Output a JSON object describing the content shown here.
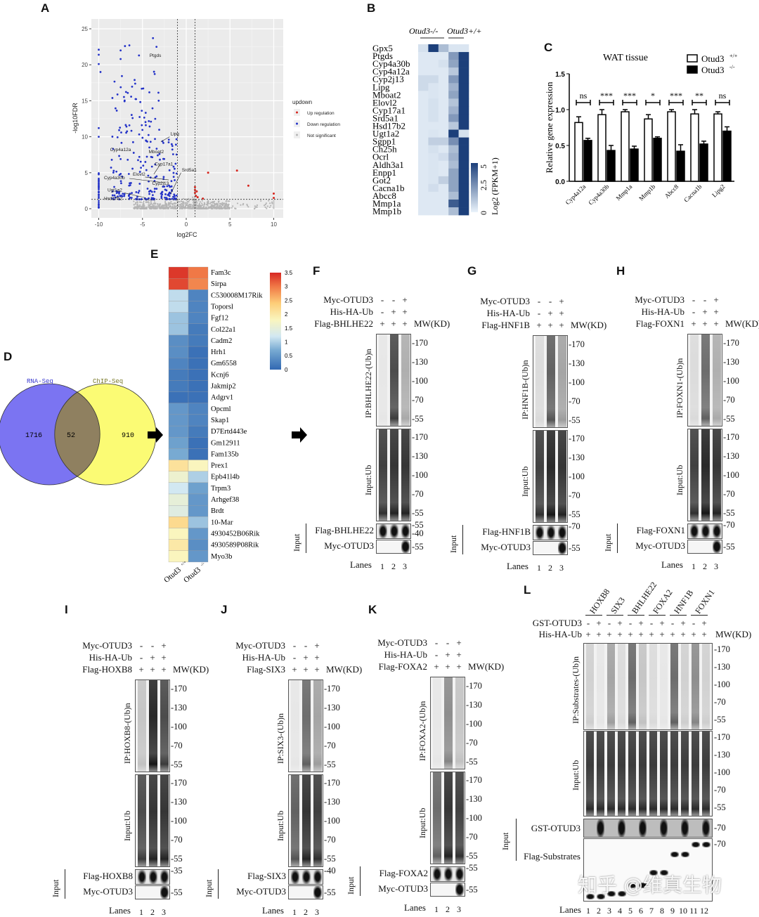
{
  "panels": {
    "A": "A",
    "B": "B",
    "C": "C",
    "D": "D",
    "E": "E",
    "F": "F",
    "G": "G",
    "H": "H",
    "I": "I",
    "J": "J",
    "K": "K",
    "L": "L"
  },
  "chart_data": [
    {
      "id": "A",
      "type": "scatter",
      "xlabel": "log2FC",
      "ylabel": "-log10FDR",
      "xlim": [
        -11,
        11
      ],
      "ylim": [
        -1,
        26
      ],
      "xticks": [
        -10,
        -5,
        0,
        5,
        10
      ],
      "yticks": [
        0,
        5,
        10,
        15,
        20,
        25
      ],
      "grid": true,
      "thresholds": {
        "log2FC": [
          -1,
          1
        ],
        "neg_log10FDR": 1.3
      },
      "legend": {
        "title": "updown",
        "placement": "right",
        "entries": [
          {
            "label": "Up regulation",
            "color": "#d7261e"
          },
          {
            "label": "Down regulation",
            "color": "#2433c8"
          },
          {
            "label": "Not significant",
            "color": "#b5b5b5"
          }
        ]
      },
      "labeled_genes": [
        "Ptgds",
        "Lipg",
        "Cyp4a12a",
        "Mboat2",
        "Cyp17a1",
        "Srd5a1",
        "Elovl2",
        "Cyp4a30b",
        "Cyp2j13",
        "Ugt1a2",
        "Hsd17b2"
      ],
      "up_points": [
        [
          1.0,
          3.0
        ],
        [
          1.0,
          2.6
        ],
        [
          1.0,
          2.2
        ],
        [
          1.1,
          1.8
        ],
        [
          1.2,
          2.4
        ],
        [
          1.3,
          1.6
        ],
        [
          1.9,
          1.4
        ],
        [
          2.5,
          5.0
        ],
        [
          5.8,
          5.3
        ],
        [
          7.1,
          3.2
        ],
        [
          10,
          2.1
        ],
        [
          10,
          1.5
        ]
      ]
    },
    {
      "id": "B",
      "type": "heatmap",
      "column_groups": [
        "Otud3-/-",
        "Otud3+/+"
      ],
      "rows": [
        "Gpx5",
        "Ptgds",
        "Cyp4a30b",
        "Cyp4a12a",
        "Cyp2j13",
        "Lipg",
        "Mboat2",
        "Elovl2",
        "Cyp17a1",
        "Srd5a1",
        "Hsd17b2",
        "Ugt1a2",
        "Sgpp1",
        "Ch25h",
        "Ocrl",
        "Aldh3a1",
        "Enpp1",
        "Got2",
        "Cacna1b",
        "Abcc8",
        "Mmp1a",
        "Mmp1b"
      ],
      "values": [
        [
          0.5,
          5,
          1.5,
          0.4,
          0.4
        ],
        [
          0.3,
          0.3,
          0.3,
          2.5,
          5
        ],
        [
          0.3,
          0.3,
          0.5,
          2.2,
          5
        ],
        [
          0.3,
          0.3,
          0.3,
          1.2,
          5
        ],
        [
          0.7,
          0.7,
          0.3,
          2.5,
          5
        ],
        [
          0.7,
          0.4,
          0.3,
          1.8,
          5
        ],
        [
          0.3,
          0.4,
          0.3,
          2.2,
          5
        ],
        [
          0.3,
          0.5,
          0.3,
          1.3,
          5
        ],
        [
          0.3,
          0.5,
          0.3,
          1.8,
          5
        ],
        [
          0.3,
          0.5,
          0.3,
          2.5,
          5
        ],
        [
          0.3,
          0.3,
          0.3,
          1.2,
          5
        ],
        [
          0.3,
          0.4,
          0.3,
          5,
          0.5
        ],
        [
          0.3,
          1.0,
          1.0,
          2.8,
          5
        ],
        [
          0.3,
          0.5,
          0.3,
          1.5,
          5
        ],
        [
          0.3,
          0.4,
          0.6,
          1.8,
          5
        ],
        [
          0.3,
          0.4,
          0.3,
          1.5,
          5
        ],
        [
          0.3,
          0.4,
          0.3,
          2.2,
          5
        ],
        [
          0.3,
          0.4,
          1.0,
          2.2,
          5
        ],
        [
          0.3,
          0.6,
          0.3,
          2.2,
          5
        ],
        [
          0.3,
          0.3,
          0.3,
          1.5,
          5
        ],
        [
          0.3,
          0.3,
          0.3,
          4.2,
          5
        ],
        [
          0.3,
          0.3,
          0.3,
          1.5,
          5
        ]
      ],
      "colorbar": {
        "label": "Log2 (FPKM+1)",
        "ticks": [
          "0",
          "2.5",
          "5"
        ],
        "range": [
          0,
          5
        ],
        "low_color": "#eaf3fb",
        "high_color": "#1c3f7a"
      }
    },
    {
      "id": "C",
      "type": "bar",
      "title": "WAT tissue",
      "ylabel": "Relative gene expression",
      "ylim": [
        0,
        1.5
      ],
      "yticks": [
        "0.0",
        "0.5",
        "1.0",
        "1.5"
      ],
      "categories": [
        "Cyp4a12a",
        "Cyp4a30b",
        "Mmp1a",
        "Mmp1b",
        "Abcc8",
        "Cacna1b",
        "Lipg2"
      ],
      "series": [
        {
          "name": "Otud3+/+",
          "base": "Otud3",
          "sup": "+/+",
          "color": "#ffffff",
          "values": [
            0.82,
            0.93,
            0.97,
            0.87,
            0.97,
            0.94,
            0.94
          ],
          "errors": [
            0.08,
            0.07,
            0.03,
            0.06,
            0.03,
            0.06,
            0.03
          ]
        },
        {
          "name": "Otud3-/-",
          "base": "Otud3",
          "sup": "-/-",
          "color": "#000000",
          "values": [
            0.57,
            0.43,
            0.45,
            0.6,
            0.42,
            0.52,
            0.7
          ],
          "errors": [
            0.03,
            0.07,
            0.04,
            0.02,
            0.09,
            0.04,
            0.06
          ]
        }
      ],
      "significance": [
        "ns",
        "***",
        "***",
        "*",
        "***",
        "**",
        "ns"
      ],
      "legend_placement": "top-right"
    },
    {
      "id": "D",
      "type": "venn",
      "sets": [
        {
          "name": "RNA-Seq",
          "only": "1716",
          "color": "#7b74f2"
        },
        {
          "name": "ChIP-Seq",
          "only": "910",
          "color": "#fbfb74"
        }
      ],
      "overlap": "52"
    },
    {
      "id": "E",
      "type": "heatmap",
      "columns": [
        {
          "base": "Otud3",
          "sup": "+/+"
        },
        {
          "base": "Otud3",
          "sup": "-/-"
        }
      ],
      "rows": [
        "Fam3c",
        "Sirpa",
        "C530008M17Rik",
        "Toporsl",
        "Fgf12",
        "Col22a1",
        "Cadm2",
        "Hrh1",
        "Gm6558",
        "Kcnj6",
        "Jakmip2",
        "Adgrv1",
        "Opcml",
        "Skap1",
        "D7Ertd443e",
        "Gm12911",
        "Fam135b",
        "Prex1",
        "Epb41l4b",
        "Trpm3",
        "Arhgef38",
        "Brdt",
        "10-Mar",
        "4930452B06Rik",
        "4930589P08Rik",
        "Myo3b"
      ],
      "values": [
        [
          3.4,
          3.0
        ],
        [
          3.3,
          2.9
        ],
        [
          1.1,
          0.3
        ],
        [
          1.1,
          0.3
        ],
        [
          0.9,
          0.3
        ],
        [
          0.9,
          0.2
        ],
        [
          0.4,
          0.2
        ],
        [
          0.4,
          0.1
        ],
        [
          0.3,
          0.1
        ],
        [
          0.2,
          0.1
        ],
        [
          0.2,
          0.1
        ],
        [
          0.1,
          0.1
        ],
        [
          0.5,
          0.3
        ],
        [
          0.5,
          0.3
        ],
        [
          0.5,
          0.2
        ],
        [
          0.6,
          0.1
        ],
        [
          0.7,
          0.1
        ],
        [
          2.1,
          1.8
        ],
        [
          1.6,
          1.0
        ],
        [
          1.2,
          0.6
        ],
        [
          1.5,
          0.5
        ],
        [
          1.4,
          0.5
        ],
        [
          2.2,
          0.9
        ],
        [
          1.8,
          0.5
        ],
        [
          2.0,
          0.4
        ],
        [
          1.8,
          0.5
        ]
      ],
      "colorbar": {
        "ticks": [
          "3.5",
          "3",
          "2.5",
          "2",
          "1.5",
          "1",
          "0.5",
          "0"
        ],
        "range": [
          0,
          3.5
        ]
      }
    }
  ],
  "blots": {
    "F": {
      "rows": [
        {
          "label": "Myc-OTUD3",
          "signs": [
            "-",
            "-",
            "+"
          ]
        },
        {
          "label": "His-HA-Ub",
          "signs": [
            "-",
            "+",
            "+"
          ]
        },
        {
          "label": "Flag-BHLHE22",
          "signs": [
            "+",
            "+",
            "+"
          ]
        }
      ],
      "mw_header": "MW(KD)",
      "ip_label": "IP:BHLHE22-(Ub)n",
      "ip_mw": [
        "-170",
        "-130",
        "-100",
        "-70",
        "-55"
      ],
      "input_label": "Input:Ub",
      "input_mw": [
        "-170",
        "-130",
        "-100",
        "-70",
        "-55"
      ],
      "input_group_label": "Input",
      "input_rows": [
        {
          "label": "Flag-BHLHE22",
          "mw": [
            "-55",
            "-40"
          ]
        },
        {
          "label": "Myc-OTUD3",
          "mw": [
            "-55"
          ]
        }
      ],
      "lanes_label": "Lanes",
      "lanes": [
        "1",
        "2",
        "3"
      ],
      "ip_signal": [
        0.05,
        0.75,
        0.3
      ],
      "input_signal": [
        0.8,
        0.85,
        0.85
      ]
    },
    "G": {
      "rows": [
        {
          "label": "Myc-OTUD3",
          "signs": [
            "-",
            "-",
            "+"
          ]
        },
        {
          "label": "His-HA-Ub",
          "signs": [
            "-",
            "+",
            "+"
          ]
        },
        {
          "label": "Flag-HNF1B",
          "signs": [
            "+",
            "+",
            "+"
          ]
        }
      ],
      "mw_header": "MW(KD)",
      "ip_label": "IP:HNF1B-(Ub)n",
      "ip_mw": [
        "-170",
        "-130",
        "-100",
        "-70",
        "-55"
      ],
      "input_label": "Input:Ub",
      "input_mw": [
        "-170",
        "-130",
        "-100",
        "-70",
        "-55"
      ],
      "input_group_label": "Input",
      "input_rows": [
        {
          "label": "Flag-HNF1B",
          "mw": [
            "-70"
          ]
        },
        {
          "label": "Myc-OTUD3",
          "mw": [
            "-55"
          ]
        }
      ],
      "lanes_label": "Lanes",
      "lanes": [
        "1",
        "2",
        "3"
      ],
      "ip_signal": [
        0.1,
        0.65,
        0.35
      ],
      "input_signal": [
        0.8,
        0.9,
        0.85
      ]
    },
    "H": {
      "rows": [
        {
          "label": "Myc-OTUD3",
          "signs": [
            "-",
            "-",
            "+"
          ]
        },
        {
          "label": "His-HA-Ub",
          "signs": [
            "-",
            "+",
            "+"
          ]
        },
        {
          "label": "Flag-FOXN1",
          "signs": [
            "+",
            "+",
            "+"
          ]
        }
      ],
      "mw_header": "MW(KD)",
      "ip_label": "IP:FOXN1-(Ub)n",
      "ip_mw": [
        "-170",
        "-130",
        "-100",
        "-70",
        "-55"
      ],
      "input_label": "Input:Ub",
      "input_mw": [
        "-170",
        "-130",
        "-100",
        "-70",
        "-55"
      ],
      "input_group_label": "Input",
      "input_rows": [
        {
          "label": "Flag-FOXN1",
          "mw": [
            "-70"
          ]
        },
        {
          "label": "Myc-OTUD3",
          "mw": [
            "-55"
          ]
        }
      ],
      "lanes_label": "Lanes",
      "lanes": [
        "1",
        "2",
        "3"
      ],
      "ip_signal": [
        0.1,
        0.6,
        0.3
      ],
      "input_signal": [
        0.8,
        0.9,
        0.85
      ]
    },
    "I": {
      "rows": [
        {
          "label": "Myc-OTUD3",
          "signs": [
            "-",
            "-",
            "+"
          ]
        },
        {
          "label": "His-HA-Ub",
          "signs": [
            "-",
            "+",
            "+"
          ]
        },
        {
          "label": "Flag-HOXB8",
          "signs": [
            "+",
            "+",
            "+"
          ]
        }
      ],
      "mw_header": "MW(KD)",
      "ip_label": "IP:HOXB8-(Ub)n",
      "ip_mw": [
        "-170",
        "-130",
        "-100",
        "-70",
        "-55"
      ],
      "input_label": "Input:Ub",
      "input_mw": [
        "-170",
        "-130",
        "-100",
        "-70",
        "-55"
      ],
      "input_group_label": "Input",
      "input_rows": [
        {
          "label": "Flag-HOXB8",
          "mw": [
            "-35"
          ]
        },
        {
          "label": "Myc-OTUD3",
          "mw": [
            "-55"
          ]
        }
      ],
      "lanes_label": "Lanes",
      "lanes": [
        "1",
        "2",
        "3"
      ],
      "ip_signal": [
        0.2,
        0.9,
        0.75
      ],
      "input_signal": [
        0.75,
        0.85,
        0.85
      ]
    },
    "J": {
      "rows": [
        {
          "label": "Myc-OTUD3",
          "signs": [
            "-",
            "-",
            "+"
          ]
        },
        {
          "label": "His-HA-Ub",
          "signs": [
            "-",
            "+",
            "+"
          ]
        },
        {
          "label": "Flag-SIX3",
          "signs": [
            "+",
            "+",
            "+"
          ]
        }
      ],
      "mw_header": "MW(KD)",
      "ip_label": "IP:SIX3-(Ub)n",
      "ip_mw": [
        "-170",
        "-130",
        "-100",
        "-70",
        "-55"
      ],
      "input_label": "Input:Ub",
      "input_mw": [
        "-170",
        "-130",
        "-100",
        "-70",
        "-55"
      ],
      "input_group_label": "Input",
      "input_rows": [
        {
          "label": "Flag-SIX3",
          "mw": [
            "-40"
          ]
        },
        {
          "label": "Myc-OTUD3",
          "mw": [
            "-55"
          ]
        }
      ],
      "lanes_label": "Lanes",
      "lanes": [
        "1",
        "2",
        "3"
      ],
      "ip_signal": [
        0.05,
        0.6,
        0.35
      ],
      "input_signal": [
        0.65,
        0.85,
        0.8
      ]
    },
    "K": {
      "rows": [
        {
          "label": "Myc-OTUD3",
          "signs": [
            "-",
            "-",
            "+"
          ]
        },
        {
          "label": "His-HA-Ub",
          "signs": [
            "-",
            "+",
            "+"
          ]
        },
        {
          "label": "Flag-FOXA2",
          "signs": [
            "+",
            "+",
            "+"
          ]
        }
      ],
      "mw_header": "MW(KD)",
      "ip_label": "IP:FOXA2-(Ub)n",
      "ip_mw": [
        "-170",
        "-130",
        "-100",
        "-70",
        "-55"
      ],
      "input_label": "Input:Ub",
      "input_mw": [
        "-170",
        "-130",
        "-100",
        "-70",
        "-55"
      ],
      "input_group_label": "Input",
      "input_rows": [
        {
          "label": "Flag-FOXA2",
          "mw": [
            "-55"
          ]
        },
        {
          "label": "Myc-OTUD3",
          "mw": [
            "-55"
          ]
        }
      ],
      "lanes_label": "Lanes",
      "lanes": [
        "1",
        "2",
        "3"
      ],
      "ip_signal": [
        0.05,
        0.45,
        0.2
      ],
      "input_signal": [
        0.6,
        0.85,
        0.8
      ]
    }
  },
  "blot_L": {
    "substrates": [
      "HOXB8",
      "SIX3",
      "BHLHE22",
      "FOXA2",
      "HNF1B",
      "FOXN1"
    ],
    "rows": [
      {
        "label": "GST-OTUD3",
        "signs": [
          "-",
          "+",
          "-",
          "+",
          "-",
          "+",
          "-",
          "+",
          "-",
          "+",
          "-",
          "+"
        ]
      },
      {
        "label": "His-HA-Ub",
        "signs": [
          "+",
          "+",
          "+",
          "+",
          "+",
          "+",
          "+",
          "+",
          "+",
          "+",
          "+",
          "+"
        ]
      }
    ],
    "mw_header": "MW(KD)",
    "ip_label": "IP:Substrates-(Ub)n",
    "ip_mw": [
      "-170",
      "-130",
      "-100",
      "-70",
      "-55"
    ],
    "input_label": "Input:Ub",
    "input_mw": [
      "-170",
      "-130",
      "-100",
      "-70",
      "-55"
    ],
    "input_group_label": "Input",
    "input_rows": [
      {
        "label": "GST-OTUD3",
        "mw": [
          "-70"
        ]
      },
      {
        "label": "Flag-Substrates",
        "mw": [
          "-70"
        ]
      }
    ],
    "lanes_label": "Lanes",
    "lanes": [
      "1",
      "2",
      "3",
      "4",
      "5",
      "6",
      "7",
      "8",
      "9",
      "10",
      "11",
      "12"
    ],
    "ip_signal": [
      0.15,
      0.05,
      0.35,
      0.1,
      0.6,
      0.2,
      0.1,
      0.05,
      0.6,
      0.15,
      0.45,
      0.15
    ]
  },
  "watermark": "知乎 @维真生物"
}
